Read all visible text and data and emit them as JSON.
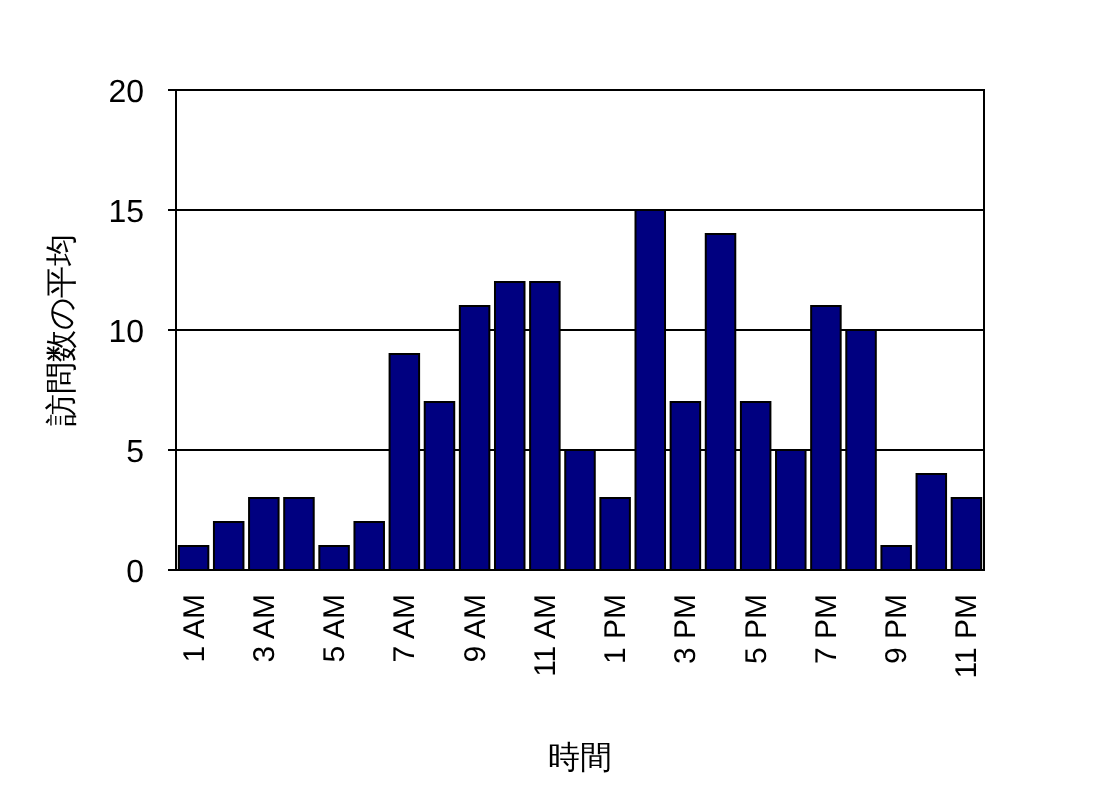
{
  "chart_data": {
    "type": "bar",
    "xlabel": "時間",
    "ylabel": "訪問数の平均",
    "categories": [
      "1 AM",
      null,
      "3 AM",
      null,
      "5 AM",
      null,
      "7 AM",
      null,
      "9 AM",
      null,
      "11 AM",
      null,
      "1 PM",
      null,
      "3 PM",
      null,
      "5 PM",
      null,
      "7 PM",
      null,
      "9 PM",
      null,
      "11 PM"
    ],
    "values": [
      1,
      2,
      3,
      3,
      1,
      2,
      9,
      7,
      11,
      12,
      12,
      5,
      3,
      15,
      7,
      14,
      7,
      5,
      11,
      10,
      1,
      4,
      3
    ],
    "color": "#000080",
    "ylim": [
      0,
      20
    ],
    "yticks": [
      0,
      5,
      10,
      15,
      20
    ],
    "grid": "y"
  }
}
